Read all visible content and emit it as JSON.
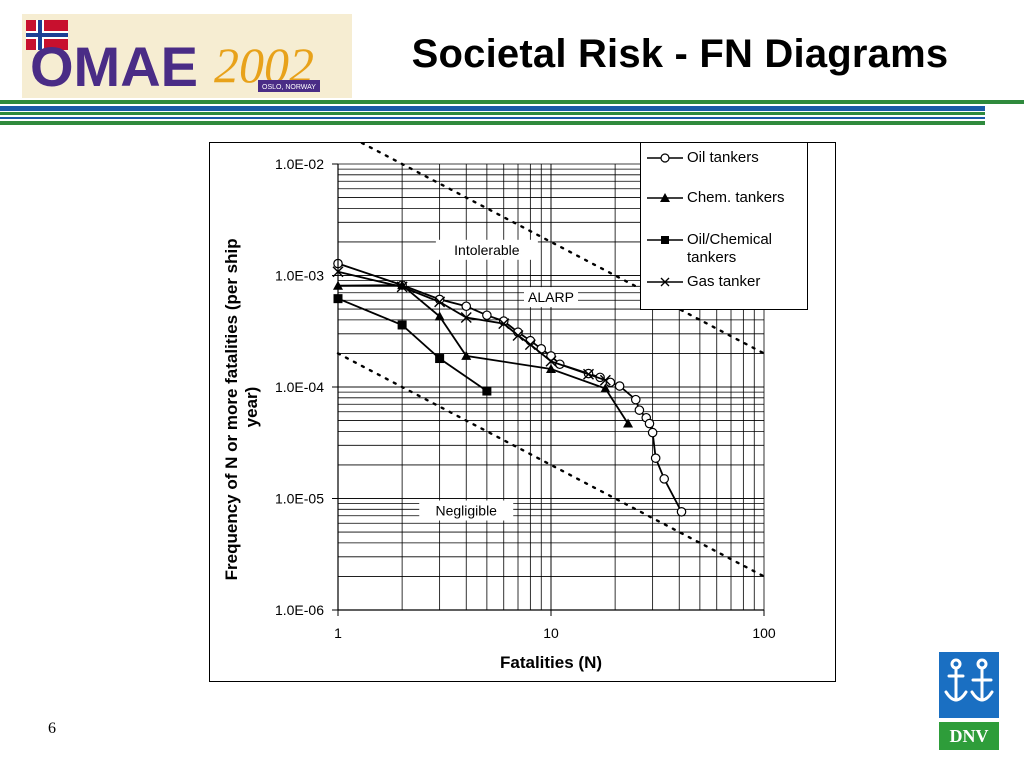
{
  "slide": {
    "title": "Societal Risk - FN Diagrams",
    "page_number": "6",
    "logo_text": "OMAE2002",
    "logo_subtext": "OSLO, NORWAY",
    "corner_logo_text": "DNV",
    "rule_colors": [
      "#2f8a3d",
      "#1a5aa8",
      "#2f8a3d"
    ]
  },
  "chart_data": {
    "type": "line",
    "xlabel": "Fatalities (N)",
    "ylabel": "Frequency of N or more fatalities (per ship year)",
    "x_scale": "log",
    "y_scale": "log",
    "xlim": [
      1,
      100
    ],
    "ylim": [
      1e-06,
      0.01
    ],
    "x_ticks": [
      {
        "value": 1,
        "label": "1"
      },
      {
        "value": 10,
        "label": "10"
      },
      {
        "value": 100,
        "label": "100"
      }
    ],
    "y_ticks": [
      {
        "value": 0.01,
        "label": "1.0E-02"
      },
      {
        "value": 0.001,
        "label": "1.0E-03"
      },
      {
        "value": 0.0001,
        "label": "1.0E-04"
      },
      {
        "value": 1e-05,
        "label": "1.0E-05"
      },
      {
        "value": 1e-06,
        "label": "1.0E-06"
      }
    ],
    "grid": true,
    "legend_position": "top-right",
    "series": [
      {
        "name": "Oil tankers",
        "marker": "open-circle",
        "points": [
          [
            1,
            0.00128
          ],
          [
            2,
            0.00082
          ],
          [
            3,
            0.00061
          ],
          [
            4,
            0.00053
          ],
          [
            5,
            0.00044
          ],
          [
            6,
            0.00039
          ],
          [
            7,
            0.00031
          ],
          [
            8,
            0.00026
          ],
          [
            9,
            0.00022
          ],
          [
            10,
            0.00019
          ],
          [
            11,
            0.00016
          ],
          [
            15,
            0.000132
          ],
          [
            17,
            0.000122
          ],
          [
            19,
            0.00011
          ],
          [
            21,
            0.000102
          ],
          [
            25,
            7.7e-05
          ],
          [
            26,
            6.2e-05
          ],
          [
            28,
            5.3e-05
          ],
          [
            29,
            4.7e-05
          ],
          [
            30,
            3.9e-05
          ],
          [
            31,
            2.3e-05
          ],
          [
            34,
            1.5e-05
          ],
          [
            41,
            7.6e-06
          ]
        ]
      },
      {
        "name": "Chem. tankers",
        "marker": "filled-triangle",
        "points": [
          [
            1,
            0.00081
          ],
          [
            2,
            0.00082
          ],
          [
            3,
            0.00043
          ],
          [
            4,
            0.00019
          ],
          [
            10,
            0.000145
          ],
          [
            18,
            9.7e-05
          ],
          [
            23,
            4.7e-05
          ]
        ]
      },
      {
        "name": "Oil/Chemical tankers",
        "marker": "filled-square",
        "points": [
          [
            1,
            0.00062
          ],
          [
            2,
            0.00036
          ],
          [
            3,
            0.00018
          ],
          [
            5,
            9.2e-05
          ]
        ]
      },
      {
        "name": "Gas tanker",
        "marker": "cross",
        "points": [
          [
            1,
            0.00108
          ],
          [
            2,
            0.00079
          ],
          [
            3,
            0.00058
          ],
          [
            4,
            0.00042
          ],
          [
            6,
            0.00037
          ],
          [
            7,
            0.00029
          ],
          [
            8,
            0.00024
          ],
          [
            10,
            0.00017
          ],
          [
            15,
            0.00013
          ],
          [
            18,
            0.000115
          ]
        ]
      }
    ],
    "criteria_lines": [
      {
        "style": "dotted",
        "points": [
          [
            1,
            0.02
          ],
          [
            100,
            0.0002
          ]
        ]
      },
      {
        "style": "dotted",
        "points": [
          [
            1,
            0.0002
          ],
          [
            100,
            2e-06
          ]
        ]
      }
    ],
    "annotations": [
      {
        "text": "Intolerable",
        "x": 5,
        "y": 0.0017
      },
      {
        "text": "ALARP",
        "x": 10,
        "y": 0.00064
      },
      {
        "text": "Negligible",
        "x": 4,
        "y": 7.8e-06
      }
    ]
  }
}
